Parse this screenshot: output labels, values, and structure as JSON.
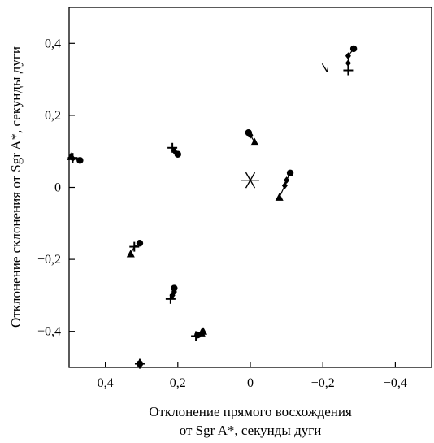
{
  "chart_data": {
    "type": "scatter",
    "xlabel_line1": "Отклонение прямого восхождения",
    "xlabel_line2": "от Sgr A*, секунды дуги",
    "ylabel": "Отклонение склонения от Sgr A*, секунды дуги",
    "x_reversed": true,
    "xlim": [
      0.5,
      -0.5
    ],
    "ylim": [
      -0.5,
      0.5
    ],
    "x_ticks": [
      {
        "value": 0.4,
        "label": "0,4"
      },
      {
        "value": 0.2,
        "label": "0,2"
      },
      {
        "value": 0.0,
        "label": "0"
      },
      {
        "value": -0.2,
        "label": "−0,2"
      },
      {
        "value": -0.4,
        "label": "−0,4"
      }
    ],
    "y_ticks": [
      {
        "value": 0.4,
        "label": "0,4"
      },
      {
        "value": 0.2,
        "label": "0,2"
      },
      {
        "value": 0.0,
        "label": "0"
      },
      {
        "value": -0.2,
        "label": "−0,2"
      },
      {
        "value": -0.4,
        "label": "−0,4"
      }
    ],
    "grid": false,
    "center_marker": {
      "x": 0.0,
      "y": 0.02,
      "symbol": "asterisk"
    },
    "stars": [
      {
        "points": [
          {
            "x": 0.47,
            "y": 0.075,
            "symbol": "circle"
          },
          {
            "x": 0.49,
            "y": 0.08,
            "symbol": "diamond"
          },
          {
            "x": 0.495,
            "y": 0.085,
            "symbol": "triangle"
          },
          {
            "x": 0.49,
            "y": 0.082,
            "symbol": "plus"
          }
        ]
      },
      {
        "points": [
          {
            "x": 0.2,
            "y": 0.092,
            "symbol": "circle"
          },
          {
            "x": 0.21,
            "y": 0.102,
            "symbol": "diamond"
          },
          {
            "x": 0.215,
            "y": 0.11,
            "symbol": "plus"
          }
        ]
      },
      {
        "points": [
          {
            "x": 0.005,
            "y": 0.152,
            "symbol": "circle"
          },
          {
            "x": 0.0,
            "y": 0.145,
            "symbol": "diamond"
          },
          {
            "x": -0.012,
            "y": 0.125,
            "symbol": "triangle"
          }
        ]
      },
      {
        "points": [
          {
            "x": -0.11,
            "y": 0.04,
            "symbol": "circle"
          },
          {
            "x": -0.1,
            "y": 0.02,
            "symbol": "diamond"
          },
          {
            "x": -0.095,
            "y": 0.005,
            "symbol": "diamond"
          },
          {
            "x": -0.08,
            "y": -0.028,
            "symbol": "triangle"
          }
        ]
      },
      {
        "points": [
          {
            "x": -0.205,
            "y": 0.33,
            "symbol": "tick"
          }
        ]
      },
      {
        "points": [
          {
            "x": -0.285,
            "y": 0.385,
            "symbol": "circle"
          },
          {
            "x": -0.27,
            "y": 0.365,
            "symbol": "diamond"
          },
          {
            "x": -0.27,
            "y": 0.345,
            "symbol": "diamond"
          },
          {
            "x": -0.27,
            "y": 0.325,
            "symbol": "plus"
          }
        ]
      },
      {
        "points": [
          {
            "x": 0.305,
            "y": -0.155,
            "symbol": "circle"
          },
          {
            "x": 0.32,
            "y": -0.165,
            "symbol": "plus"
          },
          {
            "x": 0.33,
            "y": -0.185,
            "symbol": "triangle"
          }
        ]
      },
      {
        "points": [
          {
            "x": 0.21,
            "y": -0.28,
            "symbol": "circle"
          },
          {
            "x": 0.21,
            "y": -0.29,
            "symbol": "diamond"
          },
          {
            "x": 0.215,
            "y": -0.3,
            "symbol": "diamond"
          },
          {
            "x": 0.22,
            "y": -0.31,
            "symbol": "plus"
          }
        ]
      },
      {
        "points": [
          {
            "x": 0.145,
            "y": -0.41,
            "symbol": "circle"
          },
          {
            "x": 0.15,
            "y": -0.413,
            "symbol": "plus"
          },
          {
            "x": 0.135,
            "y": -0.405,
            "symbol": "triangle"
          },
          {
            "x": 0.13,
            "y": -0.4,
            "symbol": "triangle"
          }
        ]
      },
      {
        "points": [
          {
            "x": 0.305,
            "y": -0.49,
            "symbol": "circle"
          },
          {
            "x": 0.305,
            "y": -0.49,
            "symbol": "plus"
          }
        ]
      }
    ]
  }
}
